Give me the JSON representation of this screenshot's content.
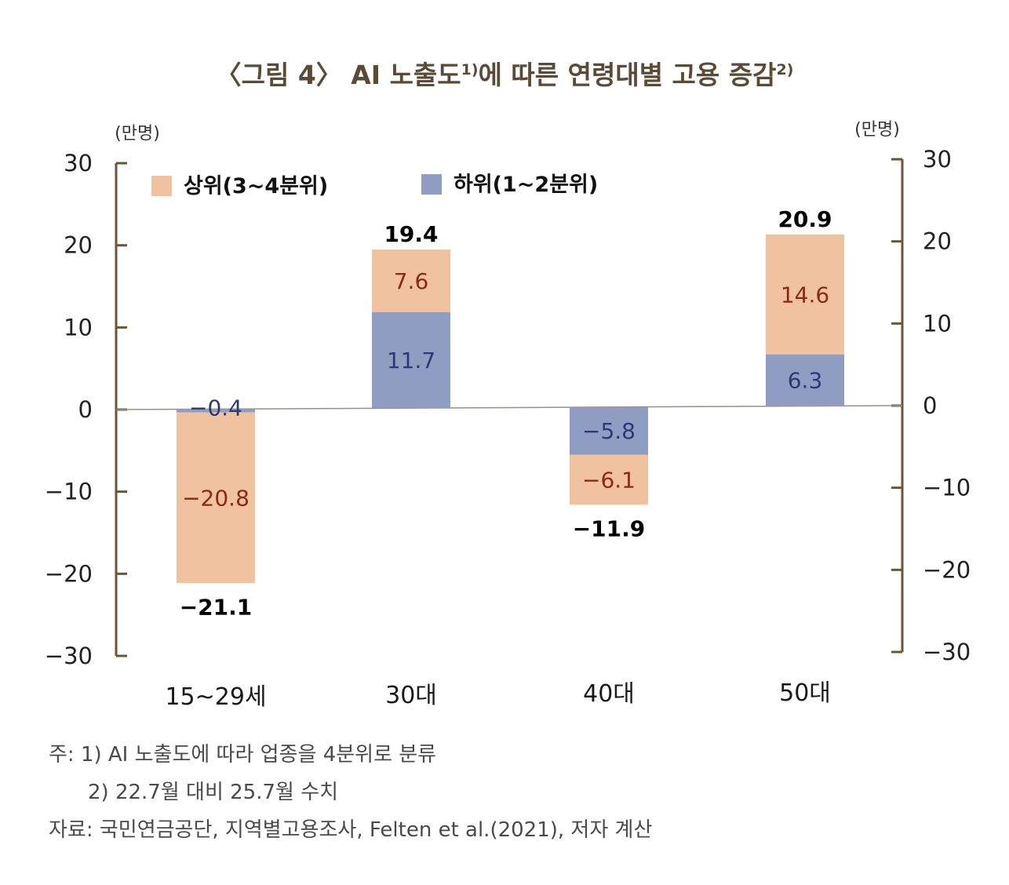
{
  "title": "〈그림 4〉 AI 노출도",
  "title_sup1": "1)",
  "title_mid": "에 따른 연령대별 고용 증감",
  "title_sup2": "2)",
  "unit_left": "(만명)",
  "unit_right": "(만명)",
  "colors": {
    "upper": "#f0c29f",
    "lower": "#8f9dc2",
    "upper_text": "#8b2a12",
    "lower_text": "#2b3a73",
    "axis": "#6b5536",
    "title": "#5b4a35"
  },
  "chart_data": {
    "type": "bar",
    "stacked": true,
    "title": "〈그림 4〉 AI 노출도에 따른 연령대별 고용 증감",
    "categories": [
      "15~29세",
      "30대",
      "40대",
      "50대"
    ],
    "series": [
      {
        "name": "하위(1~2분위)",
        "values": [
          -0.4,
          11.7,
          -5.8,
          6.3
        ],
        "labels": [
          "−0.4",
          "11.7",
          "−5.8",
          "6.3"
        ]
      },
      {
        "name": "상위(3~4분위)",
        "values": [
          -20.8,
          7.6,
          -6.1,
          14.6
        ],
        "labels": [
          "−20.8",
          "7.6",
          "−6.1",
          "14.6"
        ]
      }
    ],
    "totals": [
      -21.1,
      19.4,
      -11.9,
      20.9
    ],
    "total_labels": [
      "−21.1",
      "19.4",
      "−11.9",
      "20.9"
    ],
    "ylim": [
      -30,
      30
    ],
    "yticks": [
      30,
      20,
      10,
      0,
      -10,
      -20,
      -30
    ],
    "ytick_labels": [
      "30",
      "20",
      "10",
      "0",
      "−10",
      "−20",
      "−30"
    ],
    "ylabel": "(만명)",
    "legend": [
      "상위(3~4분위)",
      "하위(1~2분위)"
    ],
    "legend_position": "top",
    "grid": false
  },
  "notes": [
    "주: 1) AI 노출도에 따라 업종을 4분위로 분류",
    "2) 22.7월 대비 25.7월 수치",
    "자료: 국민연금공단, 지역별고용조사, Felten et al.(2021), 저자 계산"
  ]
}
